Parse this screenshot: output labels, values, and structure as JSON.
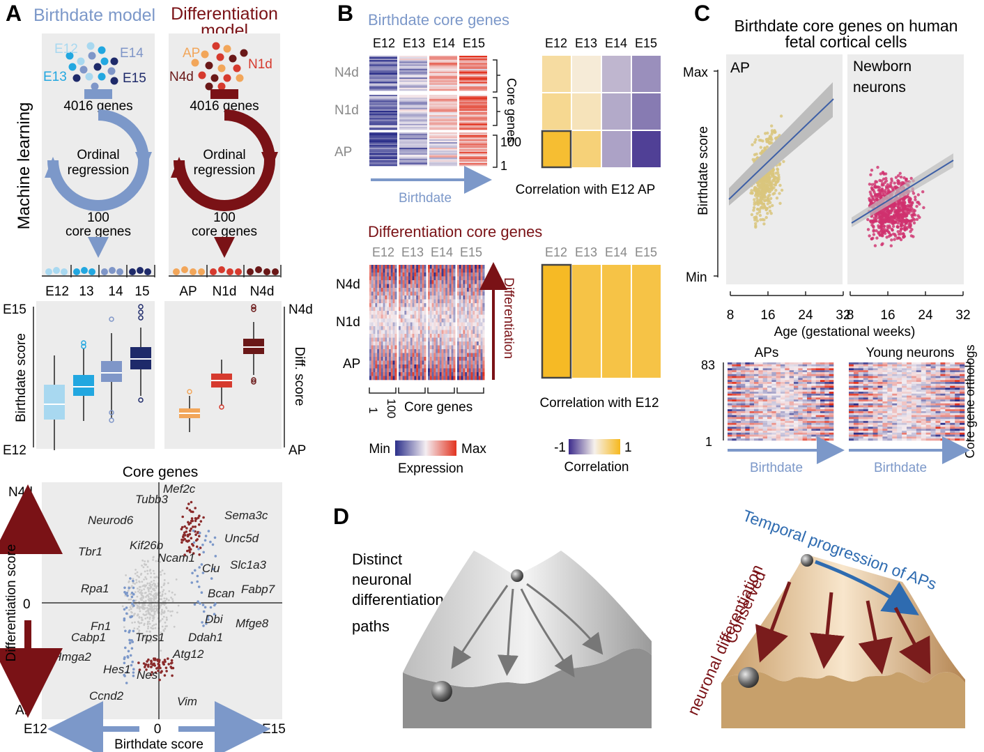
{
  "colors": {
    "birth": "#7c98c9",
    "diff": "#7a1216",
    "panelBg": "#ececec",
    "apYellow": "#d9c57c",
    "neuronPink": "#d0316e",
    "fitLine": "#3d5fa6",
    "heatBlue": "#35409a",
    "heatRed": "#e0402c",
    "corrLow": "#3d2c8c",
    "corrHigh": "#f6b81d",
    "e12": "#a8d8f0",
    "e13": "#22a7e0",
    "e14": "#7f96c8",
    "e15": "#1e2a6a",
    "ap": "#f2a65a",
    "n1d": "#d63a2e",
    "n4d": "#6a1818"
  },
  "panelA": {
    "letter": "A",
    "birth_title": "Birthdate model",
    "diff_title_1": "Differentiation",
    "diff_title_2": "model",
    "side_label": "Machine learning",
    "e12": "E12",
    "e13": "E13",
    "e14": "E14",
    "e15": "E15",
    "ap": "AP",
    "n1d": "N1d",
    "n4d": "N4d",
    "genes": "4016 genes",
    "ordinal_1": "Ordinal",
    "ordinal_2": "regression",
    "core_1": "100",
    "core_2": "core genes",
    "birth_cats": [
      "E12",
      "13",
      "14",
      "15"
    ],
    "diff_cats": [
      "AP",
      "N1d",
      "N4d"
    ],
    "box_ylabel": "Birthdate score",
    "box_top": "E15",
    "box_bottom": "E12",
    "diff_ylabel": "Diff. score",
    "diff_top": "N4d",
    "diff_bottom": "AP",
    "scatter_title": "Core genes",
    "scatter_ylabel": "Differentiation score",
    "scatter_xlabel": "Birthdate score",
    "scatter_left": "E12",
    "scatter_right": "E15",
    "scatter_zero_x": "0",
    "scatter_zero_y": "0",
    "scatter_top": "N4d",
    "scatter_bottom": "AP",
    "gene_labels": [
      "Mef2c",
      "Tubb3",
      "Sema3c",
      "Neurod6",
      "Unc5d",
      "Kif26b",
      "Tbr1",
      "Ncam1",
      "Slc1a3",
      "Clu",
      "Fabp7",
      "Rpa1",
      "Bcan",
      "Dbi",
      "Mfge8",
      "Fn1",
      "Ddah1",
      "Cabp1",
      "Trps1",
      "Atg12",
      "Hmga2",
      "Hes1",
      "Nes",
      "Ccnd2",
      "Vim"
    ]
  },
  "panelB": {
    "letter": "B",
    "title1": "Birthdate core genes",
    "title2": "Differentiation core genes",
    "stages": [
      "E12",
      "E13",
      "E14",
      "E15"
    ],
    "rows": [
      "N4d",
      "N1d",
      "AP"
    ],
    "core_genes": "Core genes",
    "n100": "100",
    "n1": "1",
    "birthdate": "Birthdate",
    "corr_e12ap": "Correlation with E12 AP",
    "corr_e12": "Correlation with E12",
    "differentiation": "Differentiation",
    "legend_min": "Min",
    "legend_max": "Max",
    "legend_expr": "Expression",
    "legend_neg": "-1",
    "legend_pos": "1",
    "legend_corr": "Correlation"
  },
  "panelC": {
    "letter": "C",
    "title1": "Birthdate core genes on human",
    "title2": "fetal cortical cells",
    "facet1": "AP",
    "facet2_1": "Newborn",
    "facet2_2": "neurons",
    "ylabel": "Birthdate score",
    "ymax": "Max",
    "ymin": "Min",
    "xticks": [
      "8",
      "16",
      "24",
      "32"
    ],
    "xlabel": "Age (gestational weeks)",
    "heat1": "APs",
    "heat2": "Young neurons",
    "heat_top": "83",
    "heat_bottom": "1",
    "heat_right": "Core gene orthologs",
    "birthdate": "Birthdate"
  },
  "panelD": {
    "letter": "D",
    "text": [
      "Distinct",
      "neuronal",
      "differentiation",
      "paths"
    ],
    "conserved_1": "Conserved",
    "conserved_2": "neuronal differentiation",
    "temporal": "Temporal progression of APs"
  }
}
